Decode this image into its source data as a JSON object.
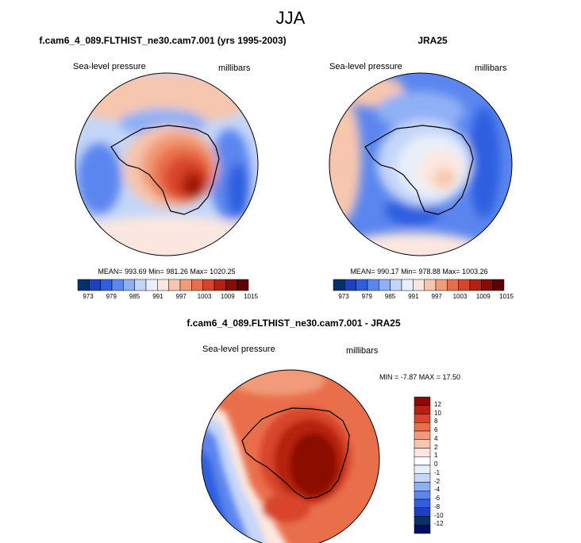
{
  "title": "JJA",
  "panels": [
    {
      "title": "f.cam6_4_089.FLTHIST_ne30.cam7.001 (yrs 1995-2003)",
      "left_label": "Sea-level pressure",
      "right_label": "millibars",
      "stats": "MEAN= 993.69  Min= 981.26  Max= 1020.25"
    },
    {
      "title": "JRA25",
      "left_label": "Sea-level pressure",
      "right_label": "millibars",
      "stats": "MEAN= 990.17  Min= 978.88  Max= 1003.26"
    },
    {
      "title": "f.cam6_4_089.FLTHIST_ne30.cam7.001 - JRA25",
      "left_label": "Sea-level pressure",
      "right_label": "millibars",
      "stats": "MIN =  -7.87 MAX =  17.50"
    }
  ],
  "abs_colorbar": {
    "labels": [
      "973",
      "979",
      "985",
      "991",
      "997",
      "1003",
      "1009",
      "1015"
    ],
    "colors": [
      "#08306b",
      "#1c3fc6",
      "#2f5fe0",
      "#5b86ef",
      "#8fb0f5",
      "#c4d6f8",
      "#e8f0fb",
      "#fbe7df",
      "#f7c6ae",
      "#f19b78",
      "#e96f4b",
      "#d8442a",
      "#b72010",
      "#8b0a04",
      "#5a0000"
    ]
  },
  "diff_colorbar": {
    "labels": [
      "12",
      "10",
      "8",
      "6",
      "4",
      "2",
      "1",
      "0",
      "-1",
      "-2",
      "-4",
      "-6",
      "-8",
      "-10",
      "-12"
    ],
    "colors": [
      "#8b0a04",
      "#b72010",
      "#d8442a",
      "#e96f4b",
      "#f19b78",
      "#f7c6ae",
      "#fbe7df",
      "#ffffff",
      "#e8f0fb",
      "#c4d6f8",
      "#8fb0f5",
      "#5b86ef",
      "#2f5fe0",
      "#1c3fc6",
      "#08306b",
      "#001060"
    ]
  }
}
